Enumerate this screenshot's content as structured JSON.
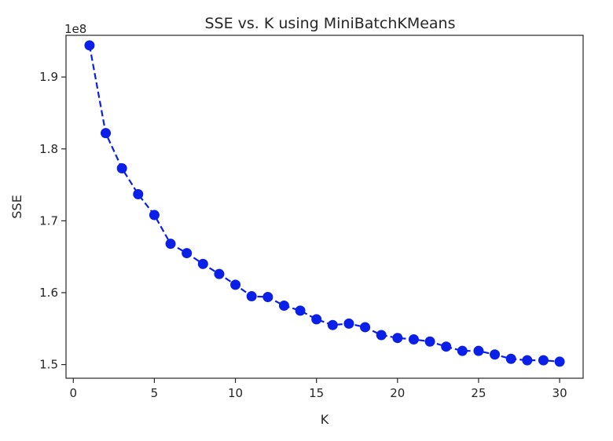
{
  "chart_data": {
    "type": "line",
    "title": "SSE vs. K using MiniBatchKMeans",
    "xlabel": "K",
    "ylabel": "SSE",
    "offset_label": "1e8",
    "x_ticks": [
      "0",
      "5",
      "10",
      "15",
      "20",
      "25",
      "30"
    ],
    "y_ticks": [
      "1.5",
      "1.6",
      "1.7",
      "1.8",
      "1.9"
    ],
    "xlim": [
      -0.45,
      31.45
    ],
    "ylim": [
      1.481,
      1.958
    ],
    "grid": false,
    "line_style": "dashed",
    "marker": "circle",
    "colors": {
      "series": "#0a1fe8",
      "axis": "#262626"
    },
    "series": [
      {
        "x": [
          1,
          2,
          3,
          4,
          5,
          6,
          7,
          8,
          9,
          10,
          11,
          12,
          13,
          14,
          15,
          16,
          17,
          18,
          19,
          20,
          21,
          22,
          23,
          24,
          25,
          26,
          27,
          28,
          29,
          30
        ],
        "y": [
          1.944,
          1.822,
          1.773,
          1.737,
          1.708,
          1.668,
          1.655,
          1.64,
          1.626,
          1.611,
          1.595,
          1.594,
          1.582,
          1.575,
          1.563,
          1.555,
          1.557,
          1.552,
          1.541,
          1.537,
          1.535,
          1.532,
          1.525,
          1.519,
          1.519,
          1.514,
          1.508,
          1.506,
          1.506,
          1.504
        ]
      }
    ]
  }
}
